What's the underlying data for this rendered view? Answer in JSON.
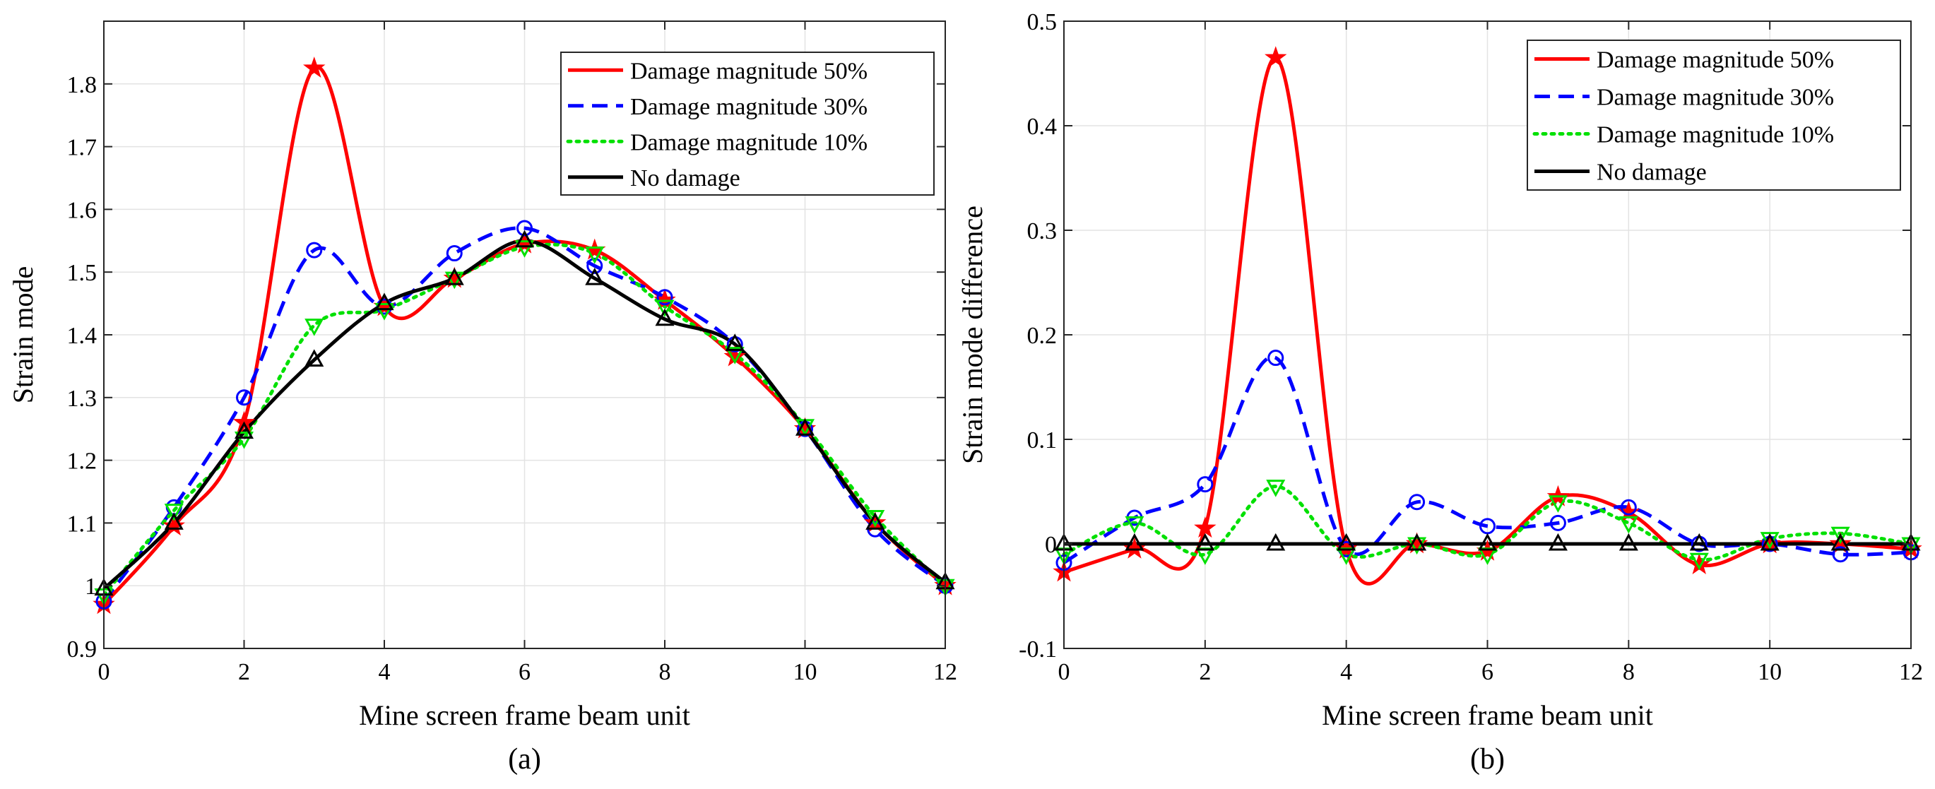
{
  "chart_data": [
    {
      "type": "line",
      "panel_label": "(a)",
      "xlabel": "Mine screen frame beam unit",
      "ylabel": "Strain mode",
      "xlim": [
        0,
        12
      ],
      "ylim": [
        0.9,
        1.9
      ],
      "xticks": [
        0,
        2,
        4,
        6,
        8,
        10,
        12
      ],
      "yticks": [
        0.9,
        1.0,
        1.1,
        1.2,
        1.3,
        1.4,
        1.5,
        1.6,
        1.7,
        1.8
      ],
      "ytick_labels": [
        "0.9",
        "1",
        "1.1",
        "1.2",
        "1.3",
        "1.4",
        "1.5",
        "1.6",
        "1.7",
        "1.8"
      ],
      "grid": true,
      "legend_position": "top-right",
      "x": [
        0,
        1,
        2,
        3,
        4,
        5,
        6,
        7,
        8,
        9,
        10,
        11,
        12
      ],
      "series": [
        {
          "name": "Damage magnitude 50%",
          "color": "#ff0000",
          "dash": "solid",
          "marker": "star",
          "values": [
            0.97,
            1.095,
            1.26,
            1.825,
            1.445,
            1.49,
            1.545,
            1.535,
            1.455,
            1.365,
            1.25,
            1.1,
            1.0
          ]
        },
        {
          "name": "Damage magnitude 30%",
          "color": "#0000ff",
          "dash": "dashed",
          "marker": "circle",
          "values": [
            0.975,
            1.125,
            1.3,
            1.535,
            1.445,
            1.53,
            1.57,
            1.51,
            1.46,
            1.385,
            1.25,
            1.09,
            1.0
          ]
        },
        {
          "name": "Damage magnitude 10%",
          "color": "#00e000",
          "dash": "dotted",
          "marker": "triangle-down",
          "values": [
            0.985,
            1.12,
            1.235,
            1.415,
            1.44,
            1.49,
            1.54,
            1.53,
            1.445,
            1.37,
            1.255,
            1.11,
            1.0
          ]
        },
        {
          "name": "No damage",
          "color": "#000000",
          "dash": "solid",
          "marker": "triangle-up",
          "values": [
            0.995,
            1.1,
            1.245,
            1.36,
            1.45,
            1.49,
            1.55,
            1.49,
            1.425,
            1.385,
            1.25,
            1.1,
            1.005
          ]
        }
      ]
    },
    {
      "type": "line",
      "panel_label": "(b)",
      "xlabel": "Mine screen frame beam unit",
      "ylabel": "Strain mode difference",
      "xlim": [
        0,
        12
      ],
      "ylim": [
        -0.1,
        0.5
      ],
      "xticks": [
        0,
        2,
        4,
        6,
        8,
        10,
        12
      ],
      "yticks": [
        -0.1,
        0,
        0.1,
        0.2,
        0.3,
        0.4,
        0.5
      ],
      "ytick_labels": [
        "-0.1",
        "0",
        "0.1",
        "0.2",
        "0.3",
        "0.4",
        "0.5"
      ],
      "grid": true,
      "legend_position": "top-right",
      "x": [
        0,
        1,
        2,
        3,
        4,
        5,
        6,
        7,
        8,
        9,
        10,
        11,
        12
      ],
      "series": [
        {
          "name": "Damage magnitude 50%",
          "color": "#ff0000",
          "dash": "solid",
          "marker": "star",
          "values": [
            -0.027,
            -0.005,
            0.015,
            0.465,
            -0.005,
            0.0,
            -0.007,
            0.045,
            0.03,
            -0.02,
            0.0,
            0.0,
            -0.005
          ]
        },
        {
          "name": "Damage magnitude 30%",
          "color": "#0000ff",
          "dash": "dashed",
          "marker": "circle",
          "values": [
            -0.018,
            0.025,
            0.057,
            0.178,
            -0.005,
            0.04,
            0.017,
            0.02,
            0.035,
            0.0,
            0.0,
            -0.01,
            -0.008
          ]
        },
        {
          "name": "Damage magnitude 10%",
          "color": "#00e000",
          "dash": "dotted",
          "marker": "triangle-down",
          "values": [
            -0.01,
            0.02,
            -0.01,
            0.055,
            -0.01,
            0.0,
            -0.01,
            0.04,
            0.02,
            -0.015,
            0.005,
            0.01,
            0.0
          ]
        },
        {
          "name": "No damage",
          "color": "#000000",
          "dash": "solid",
          "marker": "triangle-up",
          "values": [
            0,
            0,
            0,
            0,
            0,
            0,
            0,
            0,
            0,
            0,
            0,
            0,
            0
          ]
        }
      ]
    }
  ]
}
